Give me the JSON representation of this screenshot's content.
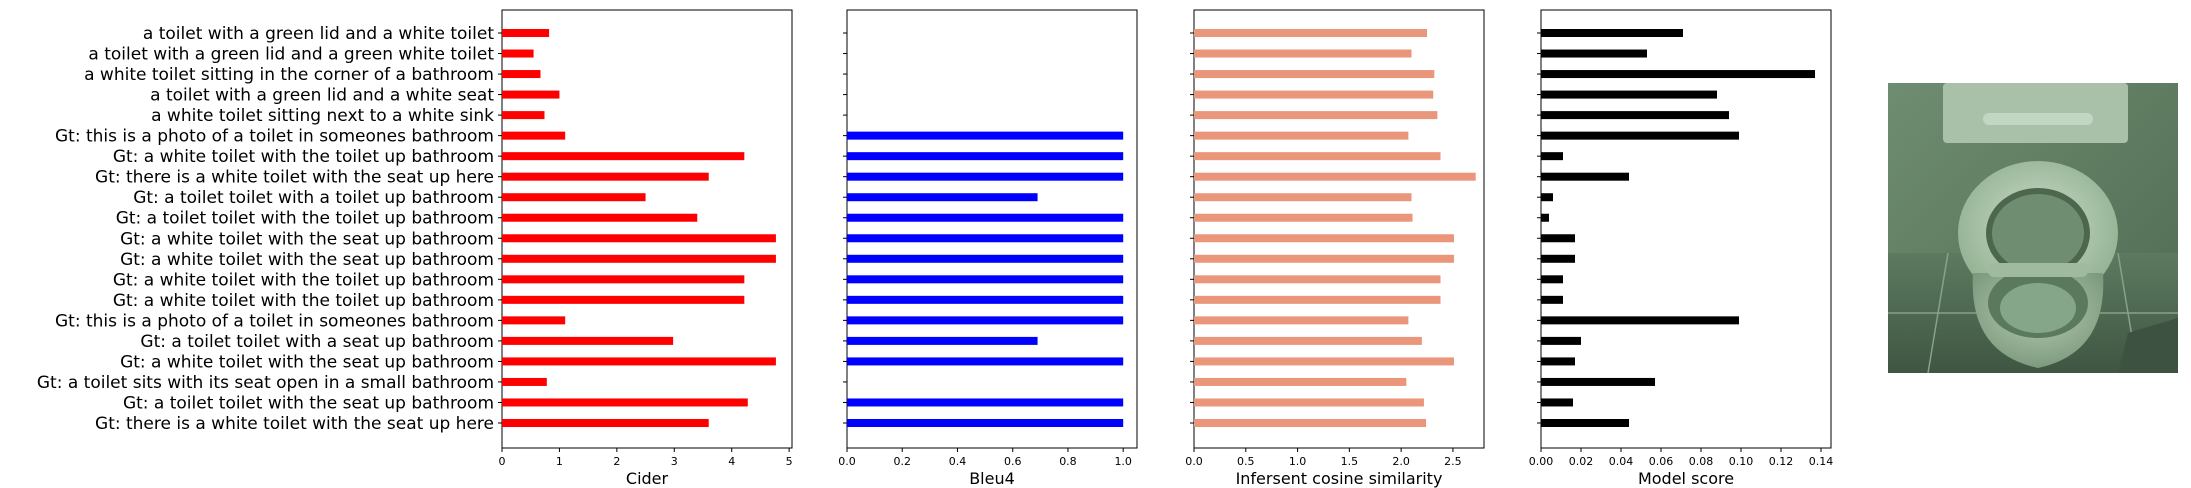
{
  "categories": [
    "a toilet with a green lid and a white toilet",
    "a toilet with a green lid and a green white toilet",
    "a white toilet sitting in the corner of a bathroom",
    "a toilet with a green lid and a white seat",
    "a white toilet sitting next to a white sink",
    "Gt: this is a photo of a toilet in someones bathroom",
    "Gt: a white toilet with the toilet up bathroom",
    "Gt: there is a white toilet with the seat up here",
    "Gt: a toilet toilet with a toilet up bathroom",
    "Gt: a toilet toilet with the toilet up bathroom",
    "Gt: a white toilet with the seat up bathroom",
    "Gt: a white toilet with the seat up bathroom",
    "Gt: a white toilet with the toilet up bathroom",
    "Gt: a white toilet with the toilet up bathroom",
    "Gt: this is a photo of a toilet in someones bathroom",
    "Gt: a toilet toilet with a seat up bathroom",
    "Gt: a white toilet with the seat up bathroom",
    "Gt: a toilet sits with its seat open in a small bathroom",
    "Gt: a toilet toilet with the seat up bathroom",
    "Gt: there is a white toilet with the seat up here"
  ],
  "chart_data": [
    {
      "type": "bar",
      "orientation": "horizontal",
      "xlabel": "Cider",
      "xlim": [
        0,
        5.05
      ],
      "xticks": [
        0,
        1,
        2,
        3,
        4,
        5
      ],
      "xtick_labels": [
        "0",
        "1",
        "2",
        "3",
        "4",
        "5"
      ],
      "color": "#ff0000",
      "show_category_labels": true,
      "values": [
        0.82,
        0.55,
        0.67,
        1.0,
        0.74,
        1.1,
        4.22,
        3.6,
        2.5,
        3.4,
        4.77,
        4.77,
        4.22,
        4.22,
        1.1,
        2.98,
        4.77,
        0.78,
        4.28,
        3.6
      ]
    },
    {
      "type": "bar",
      "orientation": "horizontal",
      "xlabel": "Bleu4",
      "xlim": [
        0,
        1.05
      ],
      "xticks": [
        0,
        0.2,
        0.4,
        0.6,
        0.8,
        1.0
      ],
      "xtick_labels": [
        "0.0",
        "0.2",
        "0.4",
        "0.6",
        "0.8",
        "1.0"
      ],
      "color": "#0000ff",
      "show_category_labels": false,
      "values": [
        0,
        0,
        0,
        0,
        0,
        1.0,
        1.0,
        1.0,
        0.69,
        1.0,
        1.0,
        1.0,
        1.0,
        1.0,
        1.0,
        0.69,
        1.0,
        0,
        1.0,
        1.0
      ]
    },
    {
      "type": "bar",
      "orientation": "horizontal",
      "xlabel": "Infersent cosine similarity",
      "xlim": [
        0,
        2.8
      ],
      "xticks": [
        0,
        0.5,
        1.0,
        1.5,
        2.0,
        2.5
      ],
      "xtick_labels": [
        "0.0",
        "0.5",
        "1.0",
        "1.5",
        "2.0",
        "2.5"
      ],
      "color": "#e9967a",
      "show_category_labels": false,
      "values": [
        2.25,
        2.1,
        2.32,
        2.31,
        2.35,
        2.07,
        2.38,
        2.72,
        2.1,
        2.11,
        2.51,
        2.51,
        2.38,
        2.38,
        2.07,
        2.2,
        2.51,
        2.05,
        2.22,
        2.24
      ]
    },
    {
      "type": "bar",
      "orientation": "horizontal",
      "xlabel": "Model score",
      "xlim": [
        0,
        0.145
      ],
      "xticks": [
        0,
        0.02,
        0.04,
        0.06,
        0.08,
        0.1,
        0.12,
        0.14
      ],
      "xtick_labels": [
        "0.00",
        "0.02",
        "0.04",
        "0.06",
        "0.08",
        "0.10",
        "0.12",
        "0.14"
      ],
      "color": "#000000",
      "show_category_labels": false,
      "values": [
        0.071,
        0.053,
        0.137,
        0.088,
        0.094,
        0.099,
        0.011,
        0.044,
        0.006,
        0.004,
        0.017,
        0.017,
        0.011,
        0.011,
        0.099,
        0.02,
        0.017,
        0.057,
        0.016,
        0.044
      ]
    }
  ],
  "photo": {
    "description_icon": "toilet-photo",
    "tint": "#7f9a80"
  }
}
